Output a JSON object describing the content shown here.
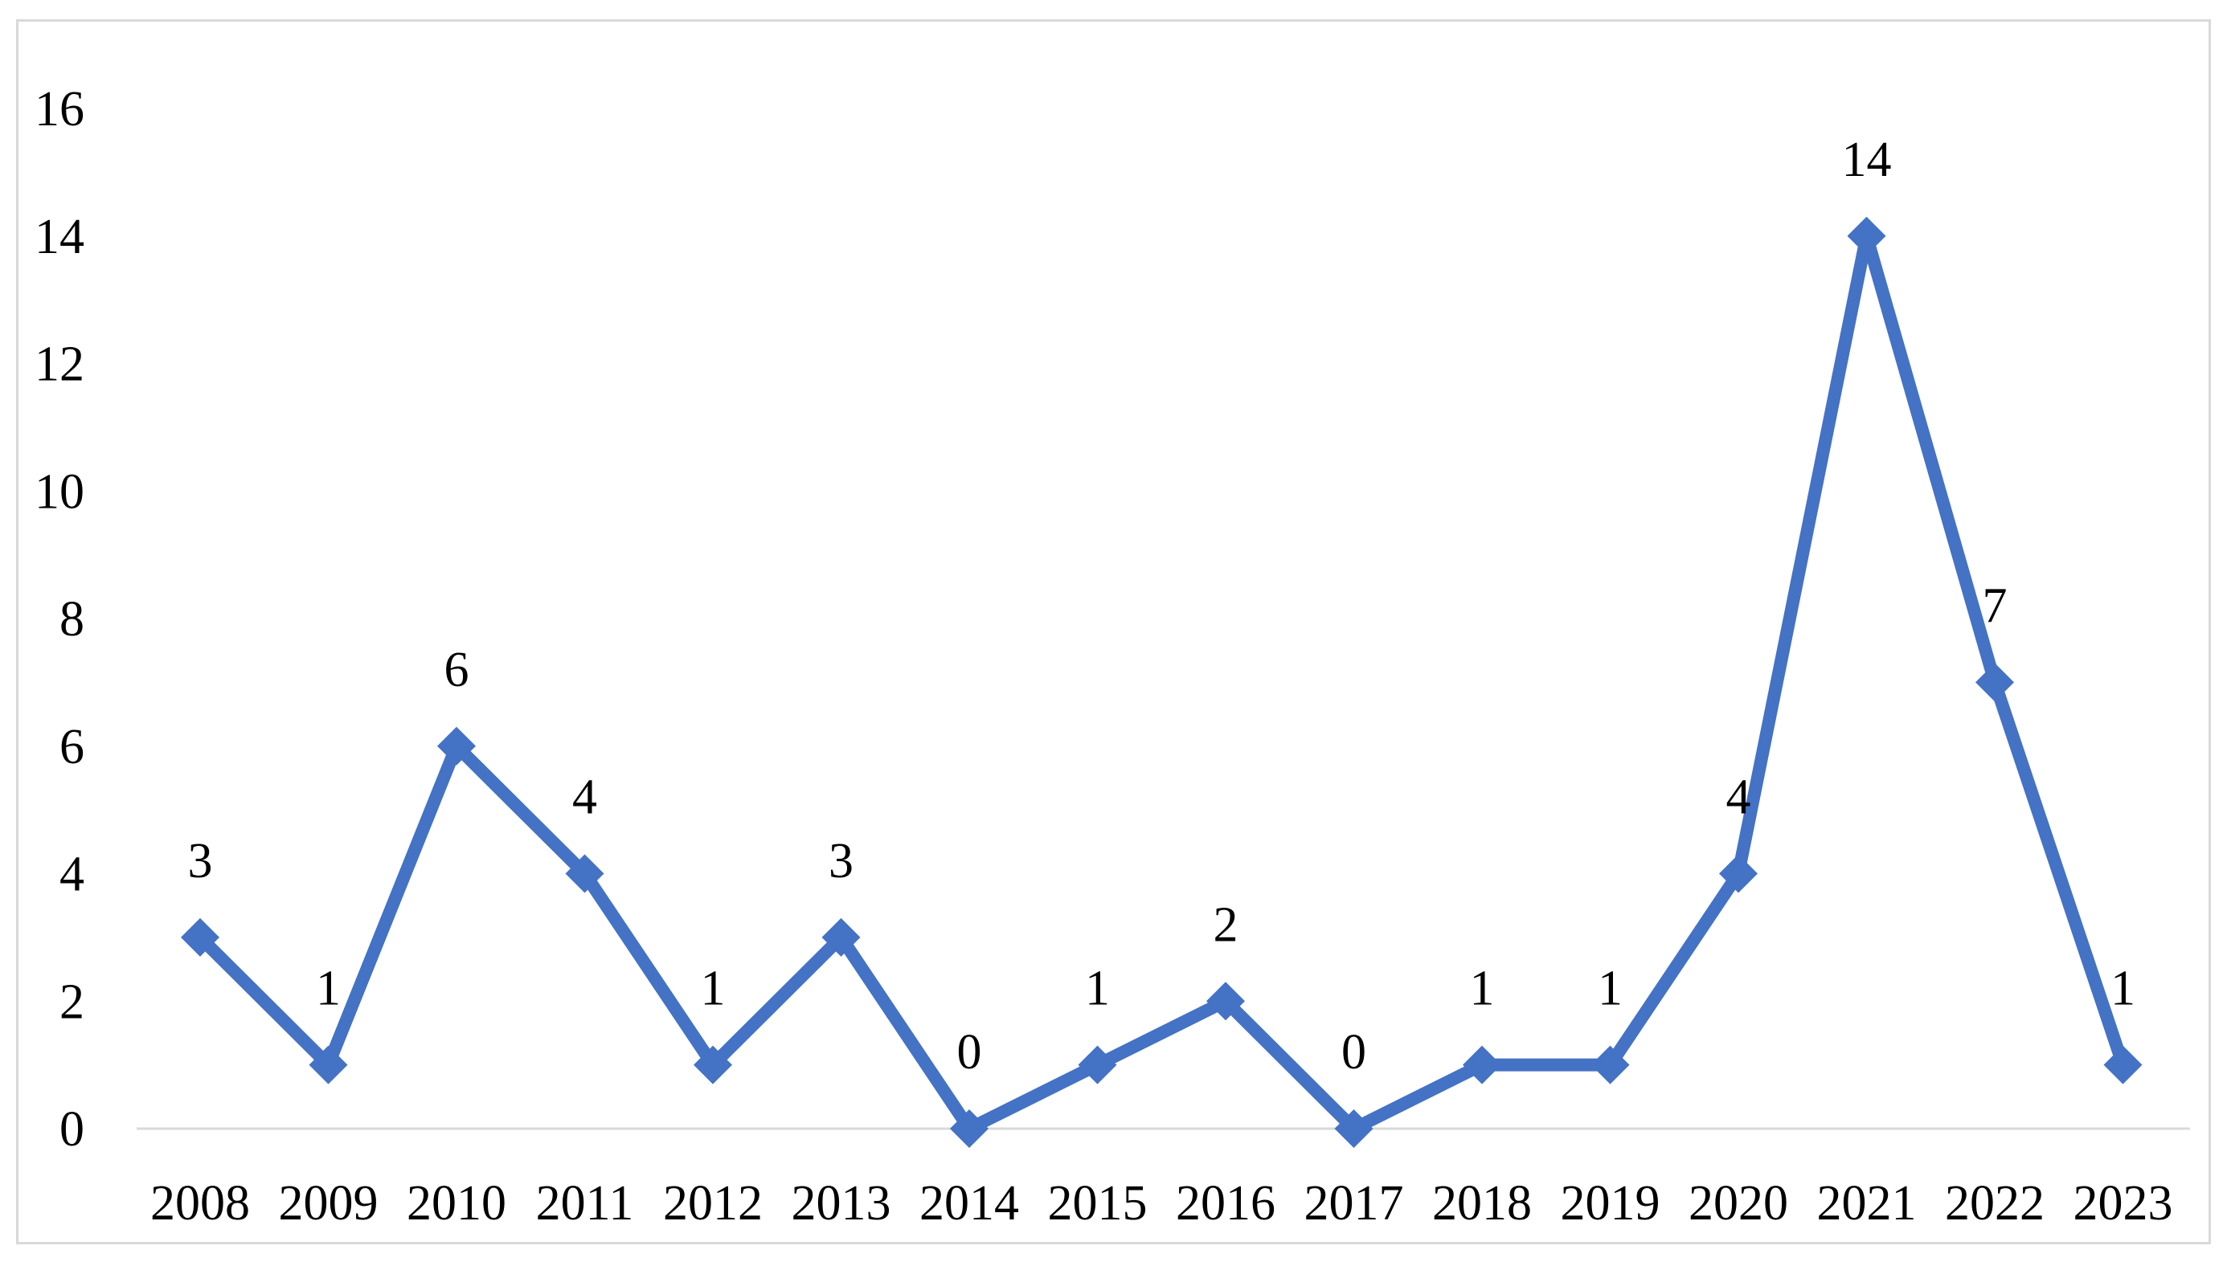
{
  "chart_data": {
    "type": "line",
    "title": "",
    "xlabel": "",
    "ylabel": "",
    "categories": [
      "2008",
      "2009",
      "2010",
      "2011",
      "2012",
      "2013",
      "2014",
      "2015",
      "2016",
      "2017",
      "2018",
      "2019",
      "2020",
      "2021",
      "2022",
      "2023"
    ],
    "series": [
      {
        "values": [
          3,
          1,
          6,
          4,
          1,
          3,
          0,
          1,
          2,
          0,
          1,
          1,
          4,
          14,
          7,
          1
        ],
        "color": "#4472c4",
        "marker": "diamond",
        "data_labels": true
      }
    ],
    "ylim": [
      0,
      16
    ],
    "yticks": [
      0,
      2,
      4,
      6,
      8,
      10,
      12,
      14,
      16
    ],
    "grid": false,
    "legend": "none"
  }
}
